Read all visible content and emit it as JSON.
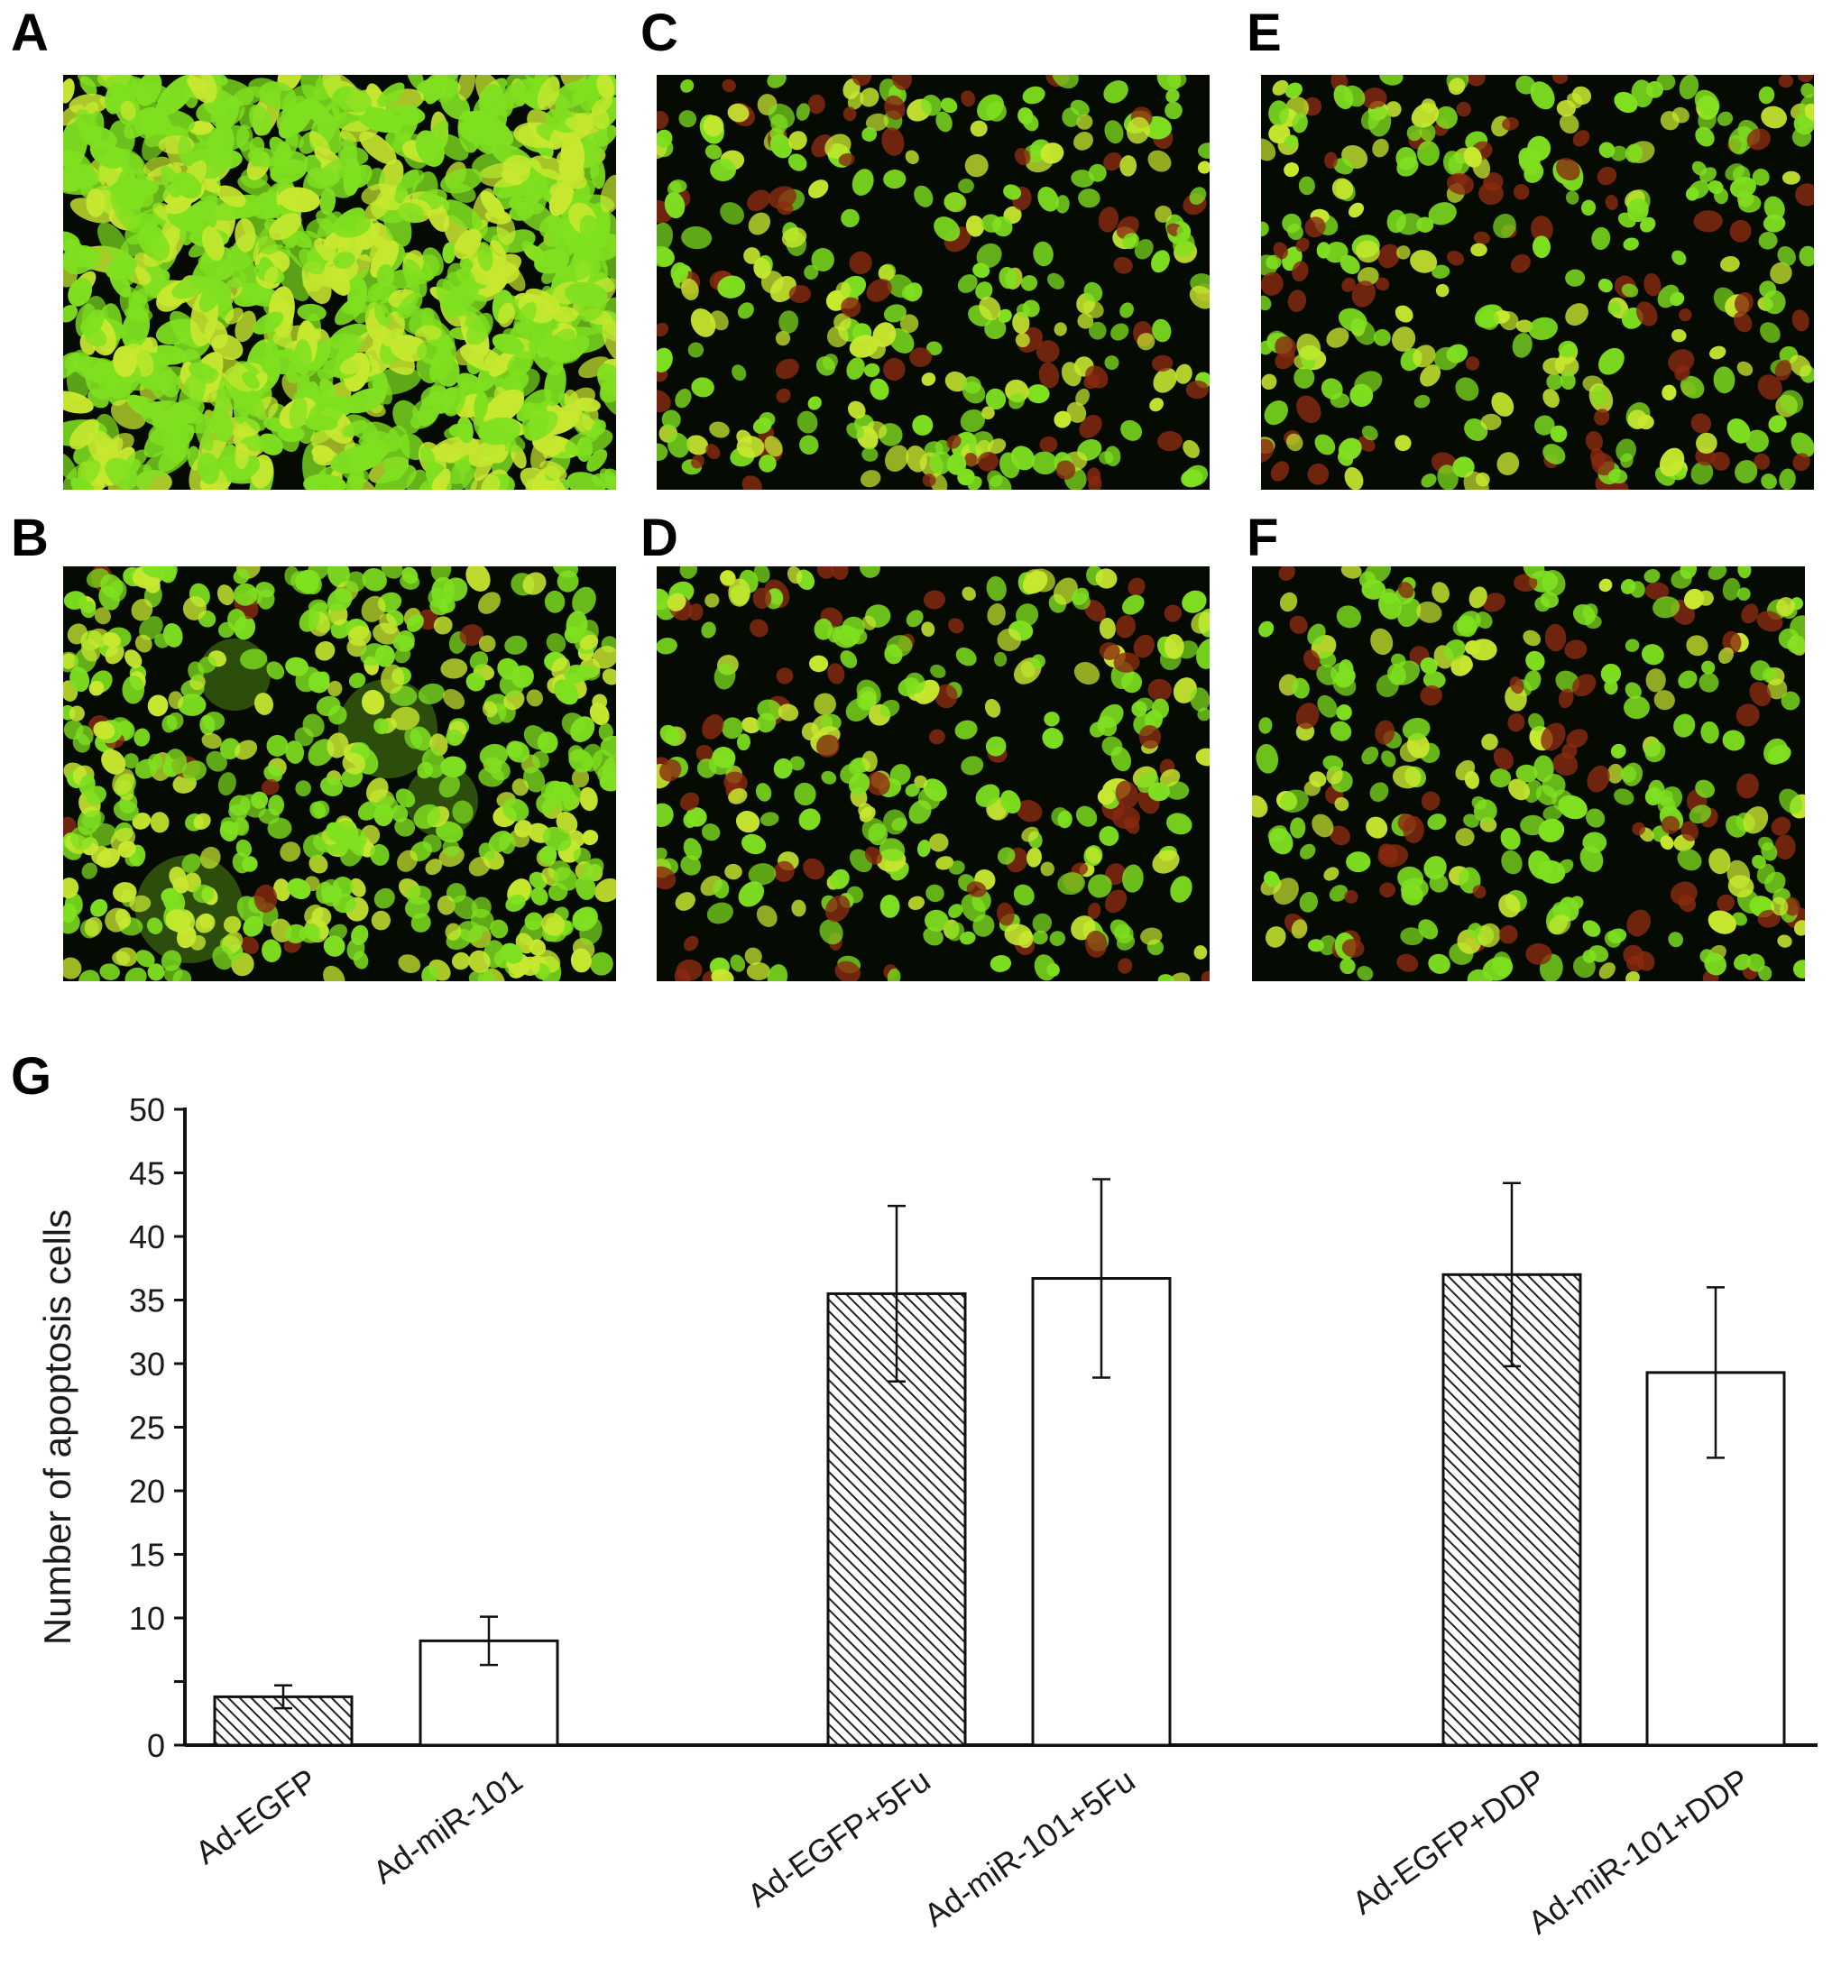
{
  "panels": [
    {
      "letter": "A",
      "style": "dense-green"
    },
    {
      "letter": "B",
      "style": "round-green"
    },
    {
      "letter": "C",
      "style": "mixed-red"
    },
    {
      "letter": "D",
      "style": "mixed-red"
    },
    {
      "letter": "E",
      "style": "mixed-red"
    },
    {
      "letter": "F",
      "style": "mixed-red"
    }
  ],
  "colors": {
    "cell_green": "#7fe020",
    "cell_yellow": "#c8e830",
    "cell_red": "#8a2a10",
    "background": "#050a02",
    "bar_stroke": "#111111"
  },
  "chart_label": "G",
  "chart_data": {
    "type": "bar",
    "ylabel": "Number of apoptosis cells",
    "xlabel": "",
    "ylim": [
      0,
      50
    ],
    "yticks": [
      "0",
      "10",
      "15",
      "20",
      "25",
      "30",
      "35",
      "40",
      "45",
      "50"
    ],
    "categories": [
      "Ad-EGFP",
      "Ad-miR-101",
      "Ad-EGFP+5Fu",
      "Ad-miR-101+5Fu",
      "Ad-EGFP+DDP",
      "Ad-miR-101+DDP"
    ],
    "groups": [
      [
        0,
        1
      ],
      [
        2,
        3
      ],
      [
        4,
        5
      ]
    ],
    "values": [
      3.8,
      8.2,
      35.5,
      36.7,
      37.0,
      29.3
    ],
    "errors": [
      0.9,
      1.9,
      6.9,
      7.8,
      7.2,
      6.7
    ],
    "fills": [
      "hatched",
      "open",
      "hatched",
      "open",
      "hatched",
      "open"
    ],
    "grid": false,
    "legend": "none"
  }
}
